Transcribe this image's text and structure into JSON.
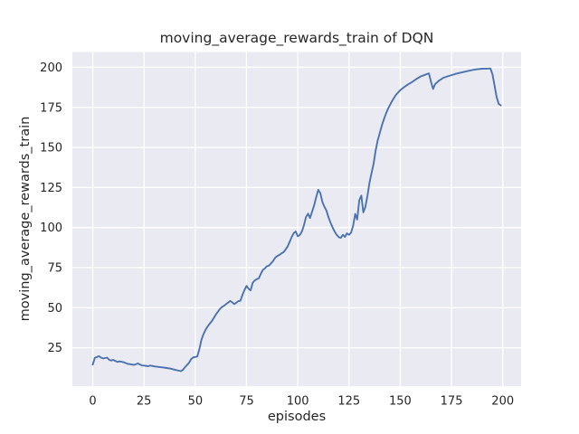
{
  "chart_data": {
    "type": "line",
    "title": "moving_average_rewards_train of DQN",
    "xlabel": "episodes",
    "ylabel": "moving_average_rewards_train",
    "x_ticks": [
      0,
      25,
      50,
      75,
      100,
      125,
      150,
      175,
      200
    ],
    "y_ticks": [
      25,
      50,
      75,
      100,
      125,
      150,
      175,
      200
    ],
    "xlim": [
      -9.95,
      208.95
    ],
    "ylim": [
      1.0,
      209.5
    ],
    "grid": true,
    "legend_position": "none",
    "colors": {
      "line": "#4c72b0",
      "plot_bg": "#eaeaf2",
      "grid": "#ffffff",
      "figure_bg": "#ffffff",
      "text": "#262626"
    },
    "series": [
      {
        "name": "moving_average_rewards_train",
        "x": [
          0,
          1,
          2,
          3,
          4,
          5,
          6,
          7,
          8,
          9,
          10,
          12,
          13,
          15,
          17,
          18,
          20,
          21,
          22,
          24,
          25,
          27,
          28,
          30,
          32,
          34,
          36,
          38,
          40,
          42,
          43,
          44,
          45,
          46,
          47,
          48,
          49,
          50,
          51,
          52,
          53,
          54,
          55,
          56,
          57,
          58,
          59,
          60,
          61,
          62,
          63,
          64,
          65,
          66,
          67,
          68,
          69,
          70,
          71,
          72,
          73,
          74,
          75,
          76,
          77,
          78,
          79,
          80,
          81,
          82,
          83,
          84,
          85,
          86,
          87,
          88,
          89,
          90,
          91,
          92,
          93,
          94,
          95,
          96,
          97,
          98,
          99,
          100,
          101,
          102,
          103,
          104,
          105,
          106,
          107,
          108,
          109,
          110,
          111,
          112,
          113,
          114,
          115,
          116,
          117,
          118,
          119,
          120,
          121,
          122,
          123,
          124,
          125,
          126,
          127,
          128,
          129,
          130,
          131,
          132,
          133,
          134,
          135,
          136,
          137,
          138,
          139,
          140,
          141,
          142,
          143,
          144,
          145,
          146,
          147,
          148,
          150,
          152,
          154,
          156,
          158,
          160,
          162,
          163,
          164,
          165,
          166,
          167,
          169,
          171,
          173,
          175,
          177,
          179,
          181,
          184,
          187,
          190,
          192,
          194,
          195,
          196,
          197,
          198,
          199
        ],
        "y": [
          14.5,
          18.7,
          19.2,
          19.8,
          18.9,
          18.4,
          18.6,
          18.8,
          17.5,
          17.1,
          17.4,
          16.2,
          16.5,
          16.0,
          15.0,
          14.8,
          14.3,
          14.7,
          15.2,
          14.0,
          13.9,
          13.5,
          13.9,
          13.4,
          13.1,
          12.8,
          12.4,
          12.0,
          11.3,
          10.7,
          10.5,
          11.2,
          12.9,
          14.3,
          15.7,
          18.0,
          19.0,
          19.3,
          19.6,
          24.2,
          29.8,
          33.5,
          36.2,
          38.2,
          40.0,
          41.5,
          43.5,
          45.7,
          47.5,
          49.2,
          50.4,
          51.2,
          52.2,
          53.2,
          54.2,
          53.4,
          52.3,
          53.1,
          54.1,
          54.3,
          58.0,
          61.0,
          63.6,
          61.8,
          60.8,
          65.5,
          67.0,
          67.8,
          68.3,
          71.2,
          73.6,
          74.6,
          75.9,
          76.3,
          77.8,
          79.2,
          81.2,
          82.3,
          82.9,
          83.9,
          84.6,
          86.2,
          88.1,
          91.0,
          94.0,
          96.5,
          97.6,
          94.6,
          95.4,
          97.6,
          101.3,
          106.5,
          108.7,
          106.0,
          110.0,
          114.0,
          119.0,
          123.5,
          121.5,
          116.0,
          113.0,
          110.5,
          106.5,
          103.0,
          100.0,
          97.5,
          95.5,
          94.0,
          93.6,
          95.5,
          94.2,
          96.4,
          95.5,
          96.8,
          101.0,
          108.5,
          105.0,
          117.0,
          120.0,
          109.5,
          113.0,
          120.0,
          128.0,
          134.0,
          140.0,
          148.0,
          154.5,
          159.0,
          163.5,
          167.5,
          171.0,
          174.0,
          176.5,
          179.0,
          181.0,
          183.0,
          185.7,
          187.8,
          189.5,
          191.0,
          192.8,
          194.3,
          195.3,
          195.8,
          196.2,
          191.0,
          186.5,
          189.5,
          191.8,
          193.4,
          194.3,
          195.1,
          195.9,
          196.5,
          197.1,
          198.0,
          198.7,
          199.1,
          199.2,
          199.3,
          195.5,
          188.5,
          181.5,
          177.2,
          176.3
        ]
      }
    ]
  }
}
